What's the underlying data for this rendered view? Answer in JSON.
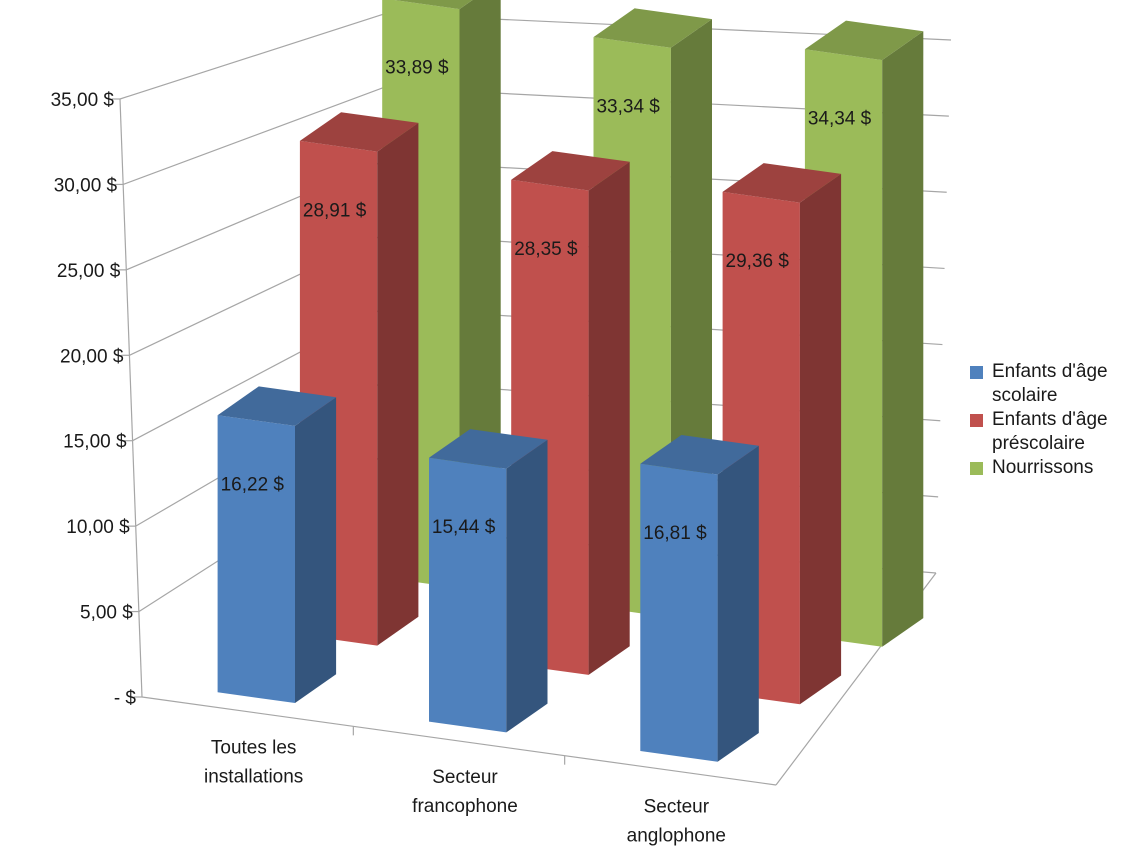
{
  "chart_data": {
    "type": "bar",
    "title": "",
    "xlabel": "",
    "ylabel": "",
    "categories": [
      [
        "Toutes les",
        "installations"
      ],
      [
        "Secteur",
        "francophone"
      ],
      [
        "Secteur",
        "anglophone"
      ]
    ],
    "series": [
      {
        "name": "Enfants d'âge scolaire",
        "legend_lines": [
          "Enfants d'âge",
          "scolaire"
        ],
        "color": "#4f81bd",
        "values": [
          16.22,
          15.44,
          16.81
        ],
        "labels": [
          "16,22 $",
          "15,44 $",
          "16,81 $"
        ]
      },
      {
        "name": "Enfants d'âge préscolaire",
        "legend_lines": [
          "Enfants d'âge",
          "préscolaire"
        ],
        "color": "#c0504d",
        "values": [
          28.91,
          28.35,
          29.36
        ],
        "labels": [
          "28,91 $",
          "28,35 $",
          "29,36 $"
        ]
      },
      {
        "name": "Nourrissons",
        "legend_lines": [
          "Nourrissons"
        ],
        "color": "#9bbb59",
        "values": [
          33.89,
          33.34,
          34.34
        ],
        "labels": [
          "33,89 $",
          "33,34 $",
          "34,34 $"
        ]
      }
    ],
    "yticks": [
      "-  $",
      "5,00 $",
      "10,00 $",
      "15,00 $",
      "20,00 $",
      "25,00 $",
      "30,00 $",
      "35,00 $"
    ],
    "ylim": [
      0,
      35
    ],
    "grid": true,
    "legend_position": "right",
    "style": "3d-column"
  }
}
